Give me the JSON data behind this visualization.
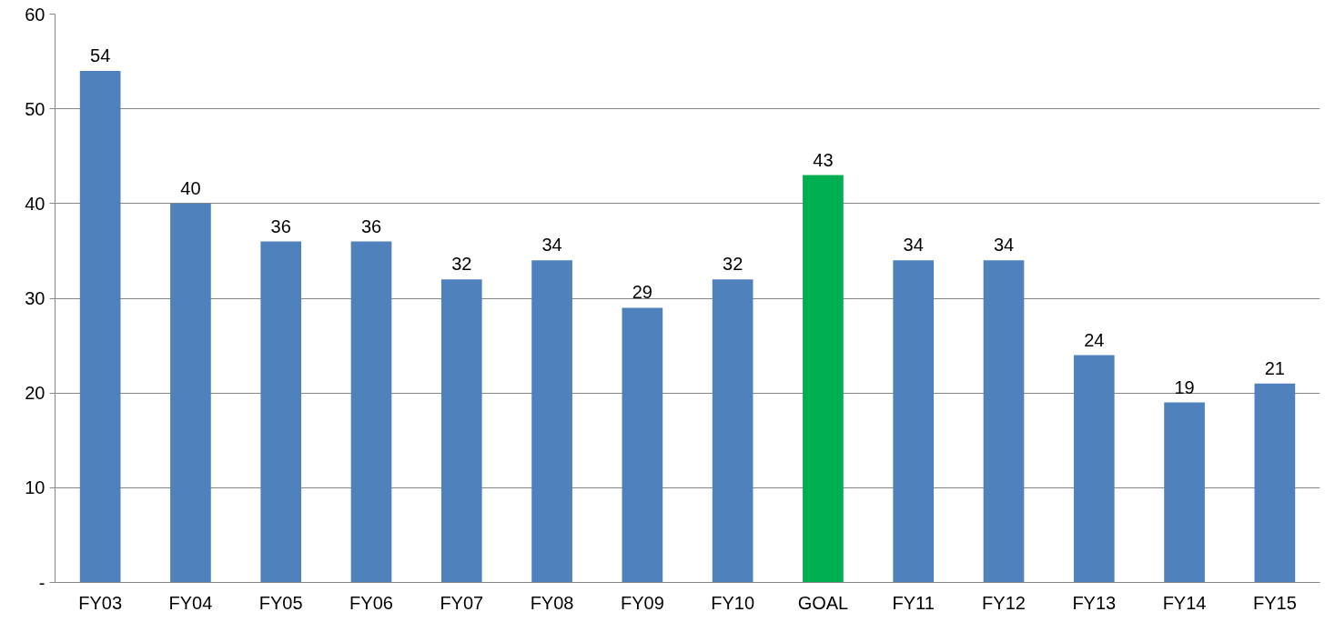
{
  "chart_data": {
    "type": "bar",
    "categories": [
      "FY03",
      "FY04",
      "FY05",
      "FY06",
      "FY07",
      "FY08",
      "FY09",
      "FY10",
      "GOAL",
      "FY11",
      "FY12",
      "FY13",
      "FY14",
      "FY15"
    ],
    "values": [
      54,
      40,
      36,
      36,
      32,
      34,
      29,
      32,
      43,
      34,
      34,
      24,
      19,
      21
    ],
    "colors": [
      "#4f81bd",
      "#4f81bd",
      "#4f81bd",
      "#4f81bd",
      "#4f81bd",
      "#4f81bd",
      "#4f81bd",
      "#4f81bd",
      "#00b050",
      "#4f81bd",
      "#4f81bd",
      "#4f81bd",
      "#4f81bd",
      "#4f81bd"
    ],
    "ylim": [
      0,
      60
    ],
    "yticks": [
      {
        "value": 0,
        "label": "-"
      },
      10,
      20,
      30,
      40,
      50,
      60
    ],
    "grid": "y",
    "data_labels": true
  }
}
